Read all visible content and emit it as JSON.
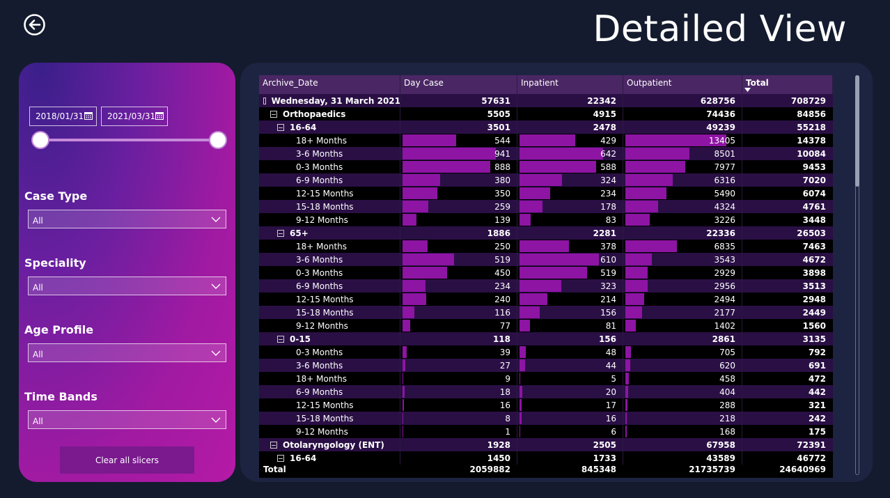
{
  "page": {
    "title": "Detailed View",
    "back_icon": "arrow-left-circle-icon"
  },
  "slicers": {
    "date_start": "2018/01/31",
    "date_end": "2021/03/31",
    "case_type": {
      "label": "Case Type",
      "value": "All"
    },
    "speciality": {
      "label": "Speciality",
      "value": "All"
    },
    "age_profile": {
      "label": "Age Profile",
      "value": "All"
    },
    "time_bands": {
      "label": "Time Bands",
      "value": "All"
    },
    "clear_label": "Clear all slicers"
  },
  "matrix": {
    "headers": [
      "Archive_Date",
      "Day Case",
      "Inpatient",
      "Outpatient",
      "Total"
    ],
    "bar_color": "#8e14a4",
    "max": {
      "day_case": 941,
      "inpatient": 642,
      "outpatient": 13405
    },
    "rows": [
      {
        "level": 0,
        "label": "Wednesday, 31 March 2021",
        "day_case": "57631",
        "inpatient": "22342",
        "outpatient": "628756",
        "total": "708729",
        "expand": true,
        "style": "group"
      },
      {
        "level": 1,
        "label": "Orthopaedics",
        "day_case": "5505",
        "inpatient": "4915",
        "outpatient": "74436",
        "total": "84856",
        "expand": true,
        "style": "dark-bold"
      },
      {
        "level": 2,
        "label": "16-64",
        "day_case": "3501",
        "inpatient": "2478",
        "outpatient": "49239",
        "total": "55218",
        "expand": true,
        "style": "group"
      },
      {
        "level": 3,
        "label": "18+ Months",
        "day_case": "544",
        "inpatient": "429",
        "outpatient": "13405",
        "total": "14378",
        "style": "dark"
      },
      {
        "level": 3,
        "label": "3-6 Months",
        "day_case": "941",
        "inpatient": "642",
        "outpatient": "8501",
        "total": "10084",
        "style": "shade"
      },
      {
        "level": 3,
        "label": "0-3 Months",
        "day_case": "888",
        "inpatient": "588",
        "outpatient": "7977",
        "total": "9453",
        "style": "dark"
      },
      {
        "level": 3,
        "label": "6-9 Months",
        "day_case": "380",
        "inpatient": "324",
        "outpatient": "6316",
        "total": "7020",
        "style": "shade"
      },
      {
        "level": 3,
        "label": "12-15 Months",
        "day_case": "350",
        "inpatient": "234",
        "outpatient": "5490",
        "total": "6074",
        "style": "dark"
      },
      {
        "level": 3,
        "label": "15-18 Months",
        "day_case": "259",
        "inpatient": "178",
        "outpatient": "4324",
        "total": "4761",
        "style": "shade"
      },
      {
        "level": 3,
        "label": "9-12 Months",
        "day_case": "139",
        "inpatient": "83",
        "outpatient": "3226",
        "total": "3448",
        "style": "dark"
      },
      {
        "level": 2,
        "label": "65+",
        "day_case": "1886",
        "inpatient": "2281",
        "outpatient": "22336",
        "total": "26503",
        "expand": true,
        "style": "group"
      },
      {
        "level": 3,
        "label": "18+ Months",
        "day_case": "250",
        "inpatient": "378",
        "outpatient": "6835",
        "total": "7463",
        "style": "dark"
      },
      {
        "level": 3,
        "label": "3-6 Months",
        "day_case": "519",
        "inpatient": "610",
        "outpatient": "3543",
        "total": "4672",
        "style": "shade"
      },
      {
        "level": 3,
        "label": "0-3 Months",
        "day_case": "450",
        "inpatient": "519",
        "outpatient": "2929",
        "total": "3898",
        "style": "dark"
      },
      {
        "level": 3,
        "label": "6-9 Months",
        "day_case": "234",
        "inpatient": "323",
        "outpatient": "2956",
        "total": "3513",
        "style": "shade"
      },
      {
        "level": 3,
        "label": "12-15 Months",
        "day_case": "240",
        "inpatient": "214",
        "outpatient": "2494",
        "total": "2948",
        "style": "dark"
      },
      {
        "level": 3,
        "label": "15-18 Months",
        "day_case": "116",
        "inpatient": "156",
        "outpatient": "2177",
        "total": "2449",
        "style": "shade"
      },
      {
        "level": 3,
        "label": "9-12 Months",
        "day_case": "77",
        "inpatient": "81",
        "outpatient": "1402",
        "total": "1560",
        "style": "dark"
      },
      {
        "level": 2,
        "label": "0-15",
        "day_case": "118",
        "inpatient": "156",
        "outpatient": "2861",
        "total": "3135",
        "expand": true,
        "style": "group"
      },
      {
        "level": 3,
        "label": "0-3 Months",
        "day_case": "39",
        "inpatient": "48",
        "outpatient": "705",
        "total": "792",
        "style": "dark"
      },
      {
        "level": 3,
        "label": "3-6 Months",
        "day_case": "27",
        "inpatient": "44",
        "outpatient": "620",
        "total": "691",
        "style": "shade"
      },
      {
        "level": 3,
        "label": "18+ Months",
        "day_case": "9",
        "inpatient": "5",
        "outpatient": "458",
        "total": "472",
        "style": "dark"
      },
      {
        "level": 3,
        "label": "6-9 Months",
        "day_case": "18",
        "inpatient": "20",
        "outpatient": "404",
        "total": "442",
        "style": "shade"
      },
      {
        "level": 3,
        "label": "12-15 Months",
        "day_case": "16",
        "inpatient": "17",
        "outpatient": "288",
        "total": "321",
        "style": "dark"
      },
      {
        "level": 3,
        "label": "15-18 Months",
        "day_case": "8",
        "inpatient": "16",
        "outpatient": "218",
        "total": "242",
        "style": "shade"
      },
      {
        "level": 3,
        "label": "9-12 Months",
        "day_case": "1",
        "inpatient": "6",
        "outpatient": "168",
        "total": "175",
        "style": "dark"
      },
      {
        "level": 1,
        "label": "Otolaryngology (ENT)",
        "day_case": "1928",
        "inpatient": "2505",
        "outpatient": "67958",
        "total": "72391",
        "expand": true,
        "style": "group"
      },
      {
        "level": 2,
        "label": "16-64",
        "day_case": "1450",
        "inpatient": "1733",
        "outpatient": "43589",
        "total": "46772",
        "expand": true,
        "style": "dark-bold"
      }
    ],
    "total_row": {
      "label": "Total",
      "day_case": "2059882",
      "inpatient": "845348",
      "outpatient": "21735739",
      "total": "24640969"
    }
  }
}
